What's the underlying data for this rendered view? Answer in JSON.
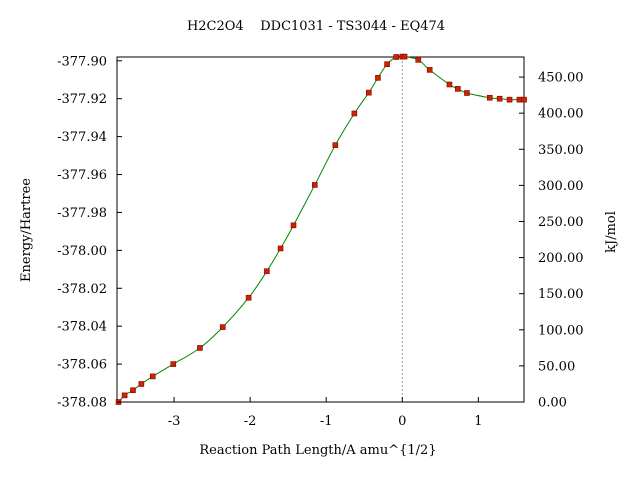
{
  "chart_data": {
    "type": "line",
    "title": "H2C2O4    DDC1031 - TS3044 - EQ474",
    "xlabel": "Reaction Path Length/A amu^{1/2}",
    "ylabel": "Energy/Hartree",
    "y2label": "kJ/mol",
    "xlim": [
      -3.75,
      1.6
    ],
    "ylim": [
      -378.08,
      -377.898
    ],
    "y2lim": [
      0,
      477.8
    ],
    "x_ticks": [
      "-3",
      "-2",
      "-1",
      "0",
      "1"
    ],
    "y_ticks": [
      "-377.90",
      "-377.92",
      "-377.94",
      "-377.96",
      "-377.98",
      "-378.00",
      "-378.02",
      "-378.04",
      "-378.06",
      "-378.08"
    ],
    "y2_ticks": [
      "450.00",
      "400.00",
      "350.00",
      "300.00",
      "250.00",
      "200.00",
      "150.00",
      "100.00",
      "50.00",
      "0.00"
    ],
    "ts_marker_x": 0,
    "colors": {
      "line": "#008800",
      "marker": "#cc2200",
      "marker_edge": "#880000",
      "ts_line": "#999999"
    },
    "series": [
      {
        "x": [
          -3.73,
          -3.65,
          -3.54,
          -3.43,
          -3.28,
          -3.01,
          -2.66,
          -2.36,
          -2.02,
          -1.78,
          -1.6,
          -1.43,
          -1.15,
          -0.88,
          -0.63,
          -0.44,
          -0.32,
          -0.2,
          -0.08,
          0.0,
          0.03,
          0.21,
          0.36,
          0.62,
          0.73,
          0.85,
          1.15,
          1.28,
          1.41,
          1.54,
          1.6
        ],
        "y": [
          -378.08,
          -378.0765,
          -378.0738,
          -378.0705,
          -378.0665,
          -378.06,
          -378.0515,
          -378.0405,
          -378.025,
          -378.011,
          -377.999,
          -377.9868,
          -377.9655,
          -377.9445,
          -377.9278,
          -377.9168,
          -377.909,
          -377.9018,
          -377.898,
          -377.8978,
          -377.8978,
          -377.8995,
          -377.9048,
          -377.9125,
          -377.9148,
          -377.917,
          -377.9195,
          -377.92,
          -377.9205,
          -377.9205,
          -377.9205
        ]
      }
    ]
  }
}
